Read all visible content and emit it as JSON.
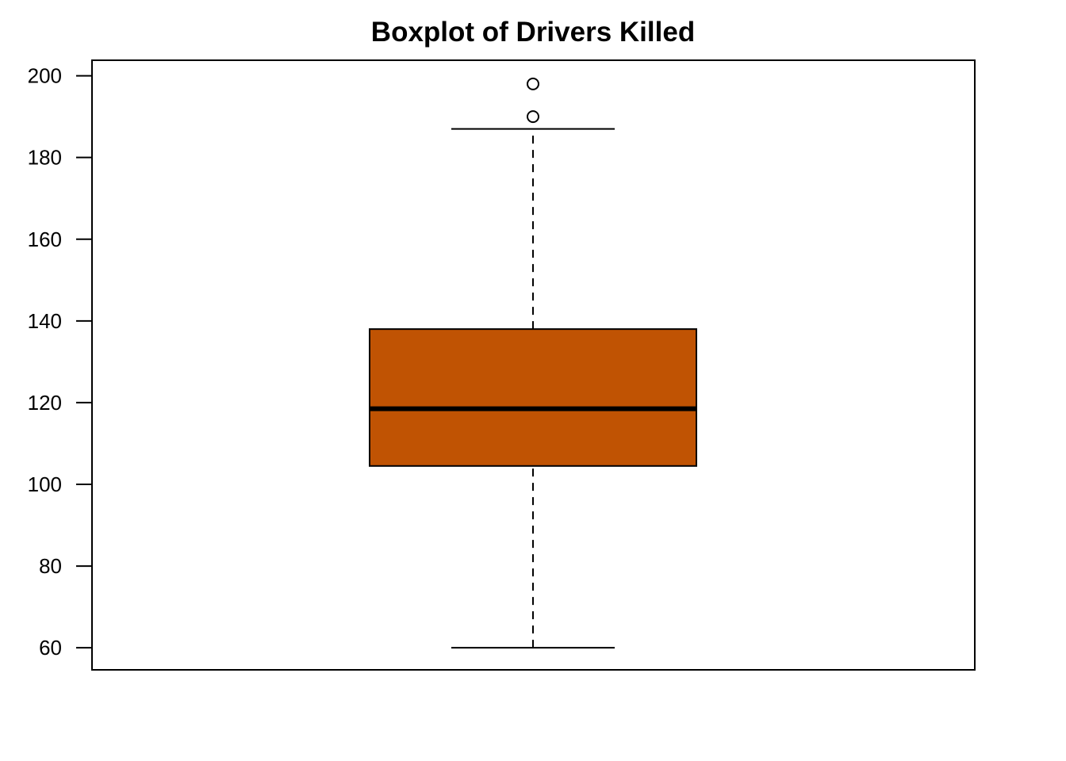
{
  "chart_data": {
    "type": "boxplot",
    "title": "Boxplot of Drivers Killed",
    "xlabel": "",
    "ylabel": "",
    "ylim": [
      54.6,
      203.8
    ],
    "yticks": [
      60,
      80,
      100,
      120,
      140,
      160,
      180,
      200
    ],
    "box": {
      "fill_color": "#c05303",
      "whisker_low": 60,
      "q1": 104.5,
      "median": 118.5,
      "q3": 138,
      "whisker_high": 187,
      "outliers": [
        190,
        198
      ]
    },
    "grid": false,
    "legend": "none"
  }
}
